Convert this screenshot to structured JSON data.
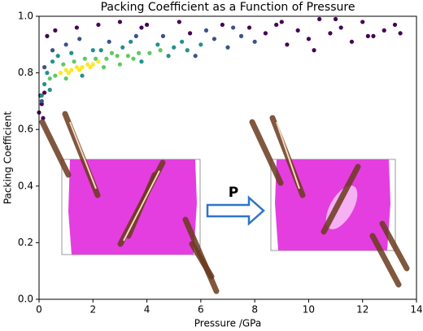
{
  "chart_data": {
    "type": "scatter",
    "title": "Packing Coefficient as a Function of Pressure",
    "x_label": "Pressure /GPa",
    "y_label": "Packing Coefficient",
    "annotation": "P",
    "xlim": [
      0,
      14
    ],
    "ylim": [
      0,
      1
    ],
    "xticks": [
      0,
      2,
      4,
      6,
      8,
      10,
      12,
      14
    ],
    "yticks": [
      {
        "value": 0,
        "label": "0.0"
      },
      0.2,
      0.4,
      0.6,
      0.8,
      {
        "value": 1,
        "label": "1.0"
      }
    ],
    "series": [
      {
        "color": "#440154",
        "x": [
          0.0,
          0.1,
          0.2,
          0.3,
          0.6,
          1.4,
          2.2,
          3.0,
          4.0,
          5.2,
          6.8,
          8.4,
          8.8,
          9.2,
          9.6,
          10.0,
          10.4,
          10.8,
          11.2,
          11.6,
          12.0,
          12.4,
          12.8,
          13.2,
          13.4,
          9.0,
          10.2,
          11.0,
          12.2,
          7.8,
          0.15,
          0.05,
          3.8,
          5.6
        ],
        "values": [
          0.66,
          0.69,
          0.73,
          0.93,
          0.95,
          0.96,
          0.97,
          0.98,
          0.97,
          0.98,
          0.97,
          0.94,
          0.97,
          0.9,
          0.95,
          0.92,
          0.99,
          0.94,
          0.96,
          0.91,
          0.98,
          0.93,
          0.95,
          0.97,
          0.94,
          0.98,
          0.88,
          0.99,
          0.93,
          0.96,
          0.64,
          0.72,
          0.96,
          0.94
        ]
      },
      {
        "color": "#3b528b",
        "x": [
          0.1,
          0.2,
          0.5,
          1.0,
          1.5,
          2.6,
          3.6,
          4.6,
          5.8,
          6.5,
          7.0,
          7.5,
          8.0,
          6.2,
          7.2
        ],
        "values": [
          0.7,
          0.82,
          0.88,
          0.9,
          0.92,
          0.91,
          0.93,
          0.93,
          0.86,
          0.92,
          0.89,
          0.93,
          0.91,
          0.95,
          0.96
        ]
      },
      {
        "color": "#21918c",
        "x": [
          0.1,
          0.2,
          0.3,
          0.5,
          0.7,
          1.2,
          1.6,
          2.3,
          3.1,
          3.8,
          4.4,
          5.0,
          5.5,
          6.0,
          4.8,
          5.3,
          0.4,
          2.0,
          3.4
        ],
        "values": [
          0.72,
          0.76,
          0.8,
          0.84,
          0.86,
          0.87,
          0.79,
          0.88,
          0.89,
          0.84,
          0.9,
          0.89,
          0.88,
          0.9,
          0.86,
          0.91,
          0.74,
          0.88,
          0.91
        ]
      },
      {
        "color": "#5ec962",
        "x": [
          0.4,
          0.6,
          0.9,
          1.3,
          1.7,
          2.1,
          2.5,
          2.9,
          3.3,
          3.7,
          4.1,
          4.5,
          2.4,
          3.0,
          3.5,
          1.0,
          2.7
        ],
        "values": [
          0.78,
          0.79,
          0.83,
          0.84,
          0.85,
          0.85,
          0.85,
          0.86,
          0.86,
          0.87,
          0.87,
          0.88,
          0.82,
          0.83,
          0.85,
          0.78,
          0.87
        ]
      },
      {
        "color": "#fde725",
        "x": [
          0.8,
          1.0,
          1.2,
          1.4,
          1.6,
          1.8,
          2.0,
          2.2,
          1.1,
          1.5,
          1.9
        ],
        "values": [
          0.8,
          0.81,
          0.81,
          0.82,
          0.82,
          0.83,
          0.83,
          0.84,
          0.8,
          0.81,
          0.82
        ]
      }
    ]
  }
}
